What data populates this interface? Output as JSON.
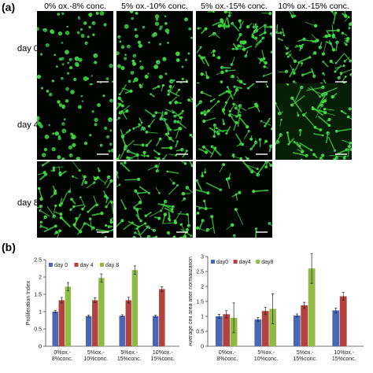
{
  "panel_a": {
    "label": "(a)",
    "columns": [
      "0% ox.-8% conc.",
      "5% ox.-10% conc.",
      "5% ox.-15% conc.",
      "10% ox.-15% conc."
    ],
    "rows": [
      "day 0",
      "day 4",
      "day 8"
    ]
  },
  "panel_b": {
    "label": "(b)"
  },
  "colors": {
    "day0": "#4a67b4",
    "day4": "#b3413d",
    "day8": "#8fba46",
    "cell_green": "#3fd83f",
    "nucleus_blue": "#2f48c8"
  },
  "chart_data": [
    {
      "type": "bar",
      "ylabel": "Proliferation Index",
      "categories": [
        "0%ox.-\n8%conc.",
        "5%ox.-\n10%conc.",
        "5%ox.-\n15%conc.",
        "10%ox.-\n15%conc."
      ],
      "ylim": [
        0,
        2.5
      ],
      "yticks": [
        "0",
        "0.5",
        "1",
        "1.5",
        "2",
        "2.5"
      ],
      "legend_position": "top-left",
      "series": [
        {
          "name": "day 0",
          "values": [
            1.0,
            0.87,
            0.88,
            0.87
          ],
          "errors": [
            0.03,
            0.03,
            0.03,
            0.03
          ]
        },
        {
          "name": "day 4",
          "values": [
            1.33,
            1.33,
            1.33,
            1.65
          ],
          "errors": [
            0.08,
            0.07,
            0.08,
            0.07
          ]
        },
        {
          "name": "day 8",
          "values": [
            1.72,
            1.97,
            2.2,
            null
          ],
          "errors": [
            0.12,
            0.12,
            0.12,
            null
          ]
        }
      ]
    },
    {
      "type": "bar",
      "ylabel": "Average cell area after normalization",
      "categories": [
        "0%ox.-\n8%conc.",
        "5%ox.-\n10%conc.",
        "5%ox.-\n15%conc.",
        "10%ox.-\n15%conc."
      ],
      "ylim": [
        0,
        3
      ],
      "yticks": [
        "0",
        "0.5",
        "1",
        "1.5",
        "2",
        "2.5",
        "3"
      ],
      "legend_position": "top-left",
      "series": [
        {
          "name": "day0",
          "values": [
            1.0,
            0.9,
            1.03,
            1.2
          ],
          "errors": [
            0.07,
            0.06,
            0.05,
            0.08
          ]
        },
        {
          "name": "day4",
          "values": [
            1.07,
            1.18,
            1.37,
            1.67
          ],
          "errors": [
            0.12,
            0.12,
            0.1,
            0.13
          ]
        },
        {
          "name": "day8",
          "values": [
            0.95,
            1.25,
            2.6,
            null
          ],
          "errors": [
            0.5,
            0.5,
            0.5,
            null
          ]
        }
      ]
    }
  ]
}
